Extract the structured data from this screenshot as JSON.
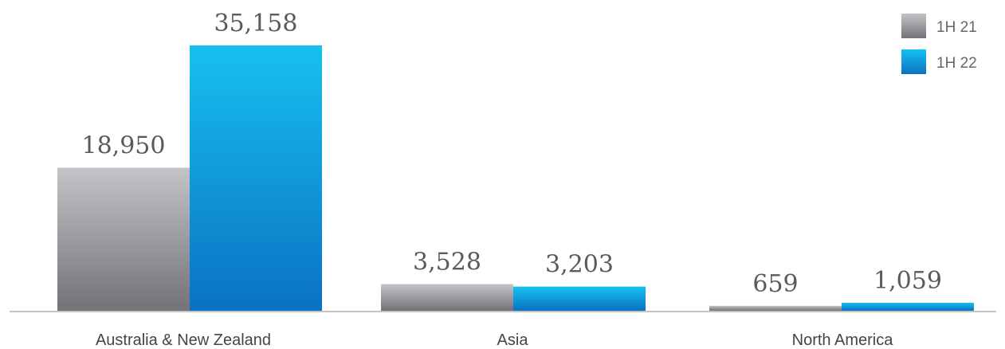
{
  "chart_data": {
    "type": "bar",
    "categories": [
      "Australia & New Zealand",
      "Asia",
      "North America"
    ],
    "series": [
      {
        "name": "1H 21",
        "values": [
          18950,
          3528,
          659
        ],
        "labels": [
          "18,950",
          "3,528",
          "659"
        ],
        "color": "#8a8a8f"
      },
      {
        "name": "1H 22",
        "values": [
          35158,
          3203,
          1059
        ],
        "labels": [
          "35,158",
          "3,203",
          "1,059"
        ],
        "color": "#1a9fe0"
      }
    ],
    "ylim": [
      0,
      35158
    ],
    "grid": false,
    "legend": "top-right",
    "xlabel": "",
    "ylabel": ""
  }
}
